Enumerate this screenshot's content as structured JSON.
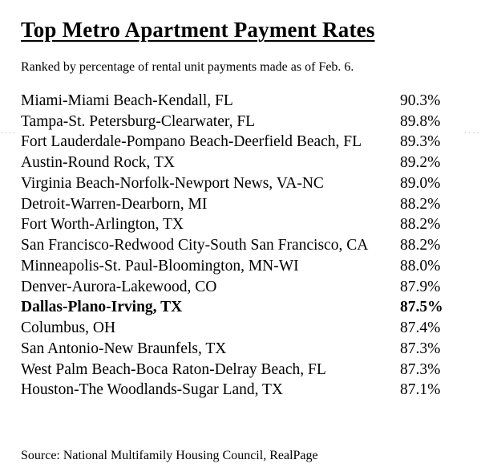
{
  "title": "Top Metro Apartment Payment Rates",
  "subtitle": "Ranked by percentage of rental unit payments made as of Feb. 6.",
  "rows": [
    {
      "metro": "Miami-Miami Beach-Kendall, FL",
      "pct": "90.3%",
      "bold": false
    },
    {
      "metro": "Tampa-St. Petersburg-Clearwater, FL",
      "pct": "89.8%",
      "bold": false
    },
    {
      "metro": "Fort Lauderdale-Pompano Beach-Deerfield Beach, FL",
      "pct": "89.3%",
      "bold": false
    },
    {
      "metro": "Austin-Round Rock, TX",
      "pct": "89.2%",
      "bold": false
    },
    {
      "metro": "Virginia Beach-Norfolk-Newport News, VA-NC",
      "pct": "89.0%",
      "bold": false
    },
    {
      "metro": "Detroit-Warren-Dearborn, MI",
      "pct": "88.2%",
      "bold": false
    },
    {
      "metro": "Fort Worth-Arlington, TX",
      "pct": "88.2%",
      "bold": false
    },
    {
      "metro": "San Francisco-Redwood City-South San Francisco, CA",
      "pct": "88.2%",
      "bold": false
    },
    {
      "metro": "Minneapolis-St. Paul-Bloomington, MN-WI",
      "pct": "88.0%",
      "bold": false
    },
    {
      "metro": "Denver-Aurora-Lakewood, CO",
      "pct": "87.9%",
      "bold": false
    },
    {
      "metro": "Dallas-Plano-Irving, TX",
      "pct": "87.5%",
      "bold": true
    },
    {
      "metro": "Columbus, OH",
      "pct": "87.4%",
      "bold": false
    },
    {
      "metro": "San Antonio-New Braunfels, TX",
      "pct": "87.3%",
      "bold": false
    },
    {
      "metro": "West Palm Beach-Boca Raton-Delray Beach, FL",
      "pct": "87.3%",
      "bold": false
    },
    {
      "metro": "Houston-The Woodlands-Sugar Land, TX",
      "pct": "87.1%",
      "bold": false
    }
  ],
  "source": "Source: National Multifamily Housing Council, RealPage",
  "colors": {
    "text": "#000000",
    "background": "#ffffff",
    "dots": "#bbbbbb"
  },
  "typography": {
    "family": "Georgia serif",
    "title_fontsize": 27,
    "subtitle_fontsize": 16,
    "row_fontsize": 19.5,
    "source_fontsize": 16
  }
}
